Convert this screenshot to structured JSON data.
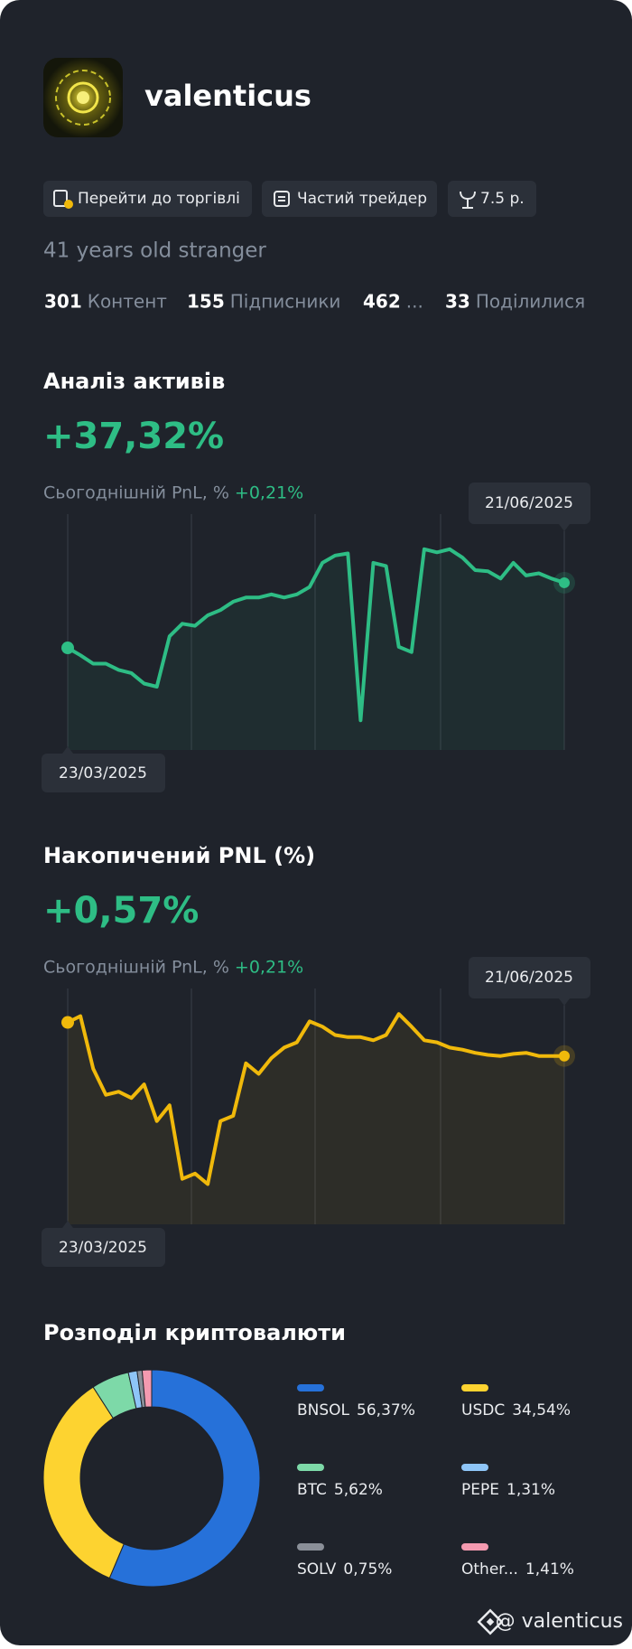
{
  "profile": {
    "username": "valenticus",
    "tags": [
      "Перейти до торгівлі",
      "Частий трейдер",
      "7.5 р."
    ],
    "bio": "41 years old stranger",
    "stats": [
      {
        "value": 301,
        "label": "Контент"
      },
      {
        "value": 155,
        "label": "Підписники"
      },
      {
        "value": 462,
        "label": "..."
      },
      {
        "value": 33,
        "label": "Поділилися"
      }
    ]
  },
  "chart_data": [
    {
      "type": "line",
      "title": "Аналіз активів",
      "headline": "+37,32%",
      "subtitle_label": "Сьогоднішній PnL, %",
      "subtitle_value": "+0,21%",
      "categories": [
        "23/03/2025",
        null,
        null,
        null,
        null,
        null,
        null,
        null,
        null,
        null,
        null,
        null,
        null,
        null,
        null,
        null,
        null,
        null,
        null,
        null,
        null,
        null,
        null,
        null,
        null,
        null,
        null,
        null,
        null,
        null,
        null,
        null,
        null,
        null,
        null,
        null,
        null,
        null,
        null,
        "21/06/2025"
      ],
      "series": [
        {
          "color": "#2ebd85",
          "values": [
            6.3,
            2.8,
            -1.2,
            -1.2,
            -4.2,
            -5.7,
            -10.7,
            -12.2,
            11.8,
            17.8,
            16.8,
            21.8,
            24.3,
            28.3,
            30.3,
            30.3,
            31.8,
            30.3,
            31.8,
            35.3,
            46.8,
            50.3,
            51.3,
            -28.2,
            46.8,
            45.3,
            6.8,
            4.3,
            53.3,
            51.8,
            53.3,
            49.3,
            43.3,
            42.8,
            39.3,
            46.8,
            40.8,
            41.8,
            39.3,
            37.32
          ]
        }
      ],
      "ylim": [
        -35,
        70
      ]
    },
    {
      "type": "line",
      "title": "Накопичений PNL (%)",
      "headline": "+0,57%",
      "subtitle_label": "Сьогоднішній PnL, %",
      "subtitle_value": "+0,21%",
      "categories": [
        "23/03/2025",
        null,
        null,
        null,
        null,
        null,
        null,
        null,
        null,
        null,
        null,
        null,
        null,
        null,
        null,
        null,
        null,
        null,
        null,
        null,
        null,
        null,
        null,
        null,
        null,
        null,
        null,
        null,
        null,
        null,
        null,
        null,
        null,
        null,
        null,
        null,
        null,
        null,
        null,
        "21/06/2025"
      ],
      "series": [
        {
          "color": "#f0b90b",
          "values": [
            3.77,
            4.37,
            -0.63,
            -3.13,
            -2.83,
            -3.43,
            -2.13,
            -5.63,
            -4.13,
            -11.13,
            -10.63,
            -11.63,
            -5.63,
            -5.13,
            -0.13,
            -1.13,
            0.37,
            1.37,
            1.87,
            3.87,
            3.37,
            2.57,
            2.37,
            2.37,
            2.07,
            2.57,
            4.57,
            3.37,
            2.07,
            1.87,
            1.37,
            1.17,
            0.87,
            0.67,
            0.57,
            0.77,
            0.87,
            0.57,
            0.57,
            0.57
          ]
        }
      ],
      "ylim": [
        -14,
        7
      ]
    },
    {
      "type": "pie",
      "title": "Розподіл криптовалюти",
      "categories": [
        "BNSOL",
        "USDC",
        "BTC",
        "PEPE",
        "SOLV",
        "Other..."
      ],
      "values": [
        56.37,
        34.54,
        5.62,
        1.31,
        0.75,
        1.41
      ],
      "value_labels": [
        "56,37%",
        "34,54%",
        "5,62%",
        "1,31%",
        "0,75%",
        "1,41%"
      ],
      "colors": [
        "#2671d9",
        "#fdd330",
        "#7dd9a8",
        "#8ec5f7",
        "#8a8f98",
        "#f49ab0"
      ]
    }
  ],
  "footer": {
    "handle": "@ valenticus"
  }
}
